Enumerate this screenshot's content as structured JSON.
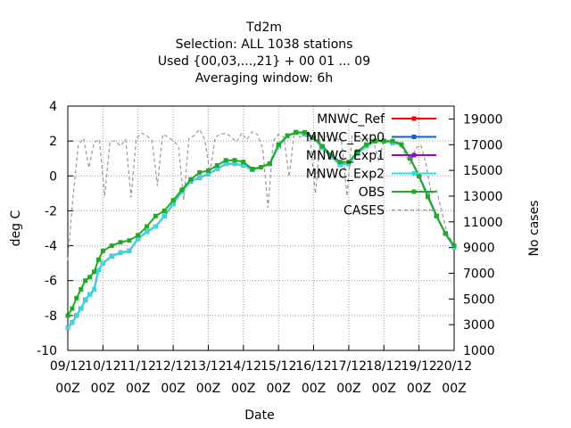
{
  "chart_data": {
    "type": "line",
    "title_lines": [
      "Td2m",
      "Selection: ALL    1038 stations",
      "Used {00,03,...,21} + 00 01 ... 09",
      "Averaging window:  6h"
    ],
    "xlabel": "Date",
    "ylabel": "deg C",
    "y2label": "No cases",
    "x_ticks": [
      {
        "d": 0,
        "l1": "09/12",
        "l2": "00Z"
      },
      {
        "d": 1,
        "l1": "10/12",
        "l2": "00Z"
      },
      {
        "d": 2,
        "l1": "11/12",
        "l2": "00Z"
      },
      {
        "d": 3,
        "l1": "12/12",
        "l2": "00Z"
      },
      {
        "d": 4,
        "l1": "13/12",
        "l2": "00Z"
      },
      {
        "d": 5,
        "l1": "14/12",
        "l2": "00Z"
      },
      {
        "d": 6,
        "l1": "15/12",
        "l2": "00Z"
      },
      {
        "d": 7,
        "l1": "16/12",
        "l2": "00Z"
      },
      {
        "d": 8,
        "l1": "17/12",
        "l2": "00Z"
      },
      {
        "d": 9,
        "l1": "18/12",
        "l2": "00Z"
      },
      {
        "d": 10,
        "l1": "19/12",
        "l2": "00Z"
      },
      {
        "d": 11,
        "l1": "20/12",
        "l2": "00Z"
      }
    ],
    "xlim": [
      0,
      11
    ],
    "ylim": [
      -10,
      4
    ],
    "y_ticks": [
      "-10",
      "-8",
      "-6",
      "-4",
      "-2",
      "0",
      "2",
      "4"
    ],
    "y2lim": [
      1000,
      20000
    ],
    "y2_ticks": [
      "1000",
      "3000",
      "5000",
      "7000",
      "9000",
      "11000",
      "13000",
      "15000",
      "17000",
      "19000"
    ],
    "grid": true,
    "legend_position": "top-right",
    "series": [
      {
        "name": "MNWC_Ref",
        "color": "#ff0000",
        "axis": "left",
        "x": [
          0,
          0.125,
          0.25,
          0.375,
          0.5,
          0.625,
          0.75,
          0.875,
          1,
          1.25,
          1.5,
          1.75,
          2,
          2.25,
          2.5,
          2.75,
          3,
          3.25,
          3.5,
          3.75,
          4,
          4.25,
          4.5,
          4.75,
          5,
          5.25,
          5.5,
          5.75,
          6,
          6.25,
          6.5,
          6.75,
          7,
          7.25,
          7.5,
          7.75,
          8,
          8.25,
          8.5,
          8.75,
          9,
          9.25,
          9.5,
          9.75,
          10,
          10.25,
          10.5,
          10.75,
          11
        ],
        "y": [
          -8.7,
          -8.4,
          -8.0,
          -7.6,
          -7.1,
          -6.8,
          -6.5,
          -5.4,
          -5.0,
          -4.6,
          -4.4,
          -4.3,
          -3.6,
          -3.2,
          -2.9,
          -2.3,
          -1.6,
          -0.9,
          -0.3,
          -0.1,
          0.1,
          0.4,
          0.7,
          0.7,
          0.6,
          0.35,
          0.5,
          0.7,
          1.7,
          2.3,
          2.5,
          2.4,
          2.2,
          1.6,
          1.1,
          0.65,
          0.7,
          1.3,
          1.7,
          2.0,
          2.0,
          1.9,
          1.8,
          1.0,
          0.0,
          -1.1,
          -2.3,
          -3.3,
          -4.1
        ]
      },
      {
        "name": "MNWC_Exp0",
        "color": "#0066dd",
        "axis": "left",
        "x": [
          0,
          0.125,
          0.25,
          0.375,
          0.5,
          0.625,
          0.75,
          0.875,
          1,
          1.25,
          1.5,
          1.75,
          2,
          2.25,
          2.5,
          2.75,
          3,
          3.25,
          3.5,
          3.75,
          4,
          4.25,
          4.5,
          4.75,
          5,
          5.25,
          5.5,
          5.75,
          6,
          6.25,
          6.5,
          6.75,
          7,
          7.25,
          7.5,
          7.75,
          8,
          8.25,
          8.5,
          8.75,
          9,
          9.25,
          9.5,
          9.75,
          10,
          10.25,
          10.5,
          10.75,
          11
        ],
        "y": [
          -8.7,
          -8.4,
          -8.0,
          -7.6,
          -7.1,
          -6.8,
          -6.5,
          -5.4,
          -5.0,
          -4.6,
          -4.4,
          -4.3,
          -3.6,
          -3.2,
          -2.9,
          -2.3,
          -1.6,
          -0.9,
          -0.3,
          -0.1,
          0.1,
          0.4,
          0.7,
          0.7,
          0.6,
          0.35,
          0.5,
          0.7,
          1.7,
          2.3,
          2.5,
          2.4,
          2.2,
          1.6,
          1.1,
          0.65,
          0.7,
          1.3,
          1.7,
          2.0,
          2.0,
          1.9,
          1.8,
          1.0,
          0.0,
          -1.1,
          -2.3,
          -3.3,
          -4.1
        ]
      },
      {
        "name": "MNWC_Exp1",
        "color": "#9900dd",
        "axis": "left",
        "x": [
          0,
          0.125,
          0.25,
          0.375,
          0.5,
          0.625,
          0.75,
          0.875,
          1,
          1.25,
          1.5,
          1.75,
          2,
          2.25,
          2.5,
          2.75,
          3,
          3.25,
          3.5,
          3.75,
          4,
          4.25,
          4.5,
          4.75,
          5,
          5.25,
          5.5,
          5.75,
          6,
          6.25,
          6.5,
          6.75,
          7,
          7.25,
          7.5,
          7.75,
          8,
          8.25,
          8.5,
          8.75,
          9,
          9.25,
          9.5,
          9.75,
          10,
          10.25,
          10.5,
          10.75,
          11
        ],
        "y": [
          -8.7,
          -8.4,
          -8.0,
          -7.6,
          -7.1,
          -6.8,
          -6.5,
          -5.4,
          -5.0,
          -4.6,
          -4.4,
          -4.3,
          -3.6,
          -3.2,
          -2.9,
          -2.3,
          -1.6,
          -0.9,
          -0.3,
          -0.1,
          0.1,
          0.4,
          0.7,
          0.7,
          0.6,
          0.35,
          0.5,
          0.7,
          1.7,
          2.3,
          2.5,
          2.4,
          2.2,
          1.6,
          1.1,
          0.65,
          0.7,
          1.3,
          1.7,
          2.0,
          2.0,
          1.9,
          1.8,
          1.0,
          0.0,
          -1.1,
          -2.3,
          -3.3,
          -4.1
        ]
      },
      {
        "name": "MNWC_Exp2",
        "color": "#33dddd",
        "axis": "left",
        "x": [
          0,
          0.125,
          0.25,
          0.375,
          0.5,
          0.625,
          0.75,
          0.875,
          1,
          1.25,
          1.5,
          1.75,
          2,
          2.25,
          2.5,
          2.75,
          3,
          3.25,
          3.5,
          3.75,
          4,
          4.25,
          4.5,
          4.75,
          5,
          5.25,
          5.5,
          5.75,
          6,
          6.25,
          6.5,
          6.75,
          7,
          7.25,
          7.5,
          7.75,
          8,
          8.25,
          8.5,
          8.75,
          9,
          9.25,
          9.5,
          9.75,
          10,
          10.25,
          10.5,
          10.75,
          11
        ],
        "y": [
          -8.7,
          -8.4,
          -8.0,
          -7.6,
          -7.1,
          -6.8,
          -6.5,
          -5.4,
          -5.0,
          -4.6,
          -4.4,
          -4.3,
          -3.6,
          -3.2,
          -2.9,
          -2.3,
          -1.6,
          -0.9,
          -0.3,
          -0.1,
          0.1,
          0.4,
          0.7,
          0.7,
          0.6,
          0.35,
          0.5,
          0.7,
          1.7,
          2.3,
          2.5,
          2.4,
          2.2,
          1.6,
          1.1,
          0.65,
          0.7,
          1.3,
          1.7,
          2.0,
          2.0,
          1.9,
          1.8,
          1.0,
          0.0,
          -1.1,
          -2.3,
          -3.3,
          -4.1
        ]
      },
      {
        "name": "OBS",
        "color": "#22aa22",
        "axis": "left",
        "x": [
          0,
          0.125,
          0.25,
          0.375,
          0.5,
          0.625,
          0.75,
          0.875,
          1,
          1.25,
          1.5,
          1.75,
          2,
          2.25,
          2.5,
          2.75,
          3,
          3.25,
          3.5,
          3.75,
          4,
          4.25,
          4.5,
          4.75,
          5,
          5.25,
          5.5,
          5.75,
          6,
          6.25,
          6.5,
          6.75,
          7,
          7.25,
          7.5,
          7.75,
          8,
          8.25,
          8.5,
          8.75,
          9,
          9.25,
          9.5,
          9.75,
          10,
          10.25,
          10.5,
          10.75,
          11
        ],
        "y": [
          -8.0,
          -7.6,
          -7.0,
          -6.5,
          -6.0,
          -5.8,
          -5.5,
          -4.8,
          -4.3,
          -4.0,
          -3.8,
          -3.7,
          -3.4,
          -2.9,
          -2.3,
          -2.0,
          -1.4,
          -0.8,
          -0.2,
          0.2,
          0.3,
          0.6,
          0.9,
          0.9,
          0.8,
          0.4,
          0.5,
          0.7,
          1.8,
          2.3,
          2.5,
          2.5,
          2.2,
          1.7,
          1.2,
          0.8,
          0.8,
          1.4,
          1.8,
          2.0,
          2.0,
          2.0,
          1.8,
          1.0,
          0.0,
          -1.2,
          -2.3,
          -3.3,
          -4.0
        ]
      },
      {
        "name": "CASES",
        "color": "#999999",
        "axis": "right",
        "dashed": true,
        "x": [
          0,
          0.15,
          0.3,
          0.45,
          0.6,
          0.75,
          0.9,
          1.05,
          1.2,
          1.35,
          1.5,
          1.65,
          1.8,
          1.95,
          2.1,
          2.25,
          2.4,
          2.55,
          2.7,
          2.85,
          3.0,
          3.15,
          3.3,
          3.45,
          3.6,
          3.75,
          3.9,
          4.05,
          4.2,
          4.35,
          4.5,
          4.65,
          4.8,
          4.95,
          5.1,
          5.25,
          5.4,
          5.55,
          5.7,
          5.85,
          6.0,
          6.15,
          6.3,
          6.45,
          6.6,
          6.75,
          6.9,
          7.05,
          7.2,
          7.35,
          7.5,
          7.65,
          7.8,
          7.95,
          8.1,
          8.25,
          8.4,
          8.55,
          8.7,
          8.85,
          9.0,
          9.15,
          9.3,
          9.45,
          9.6,
          9.75,
          9.9,
          10.05,
          10.2,
          10.35,
          10.5,
          10.65,
          10.8,
          11
        ],
        "y": [
          8000,
          13000,
          17000,
          17500,
          15200,
          17200,
          17400,
          13000,
          17200,
          17300,
          16900,
          17400,
          12900,
          17500,
          17900,
          17700,
          17300,
          13800,
          17800,
          17600,
          17300,
          16900,
          12700,
          17500,
          17700,
          18200,
          17400,
          14800,
          17600,
          17800,
          17900,
          17600,
          17200,
          17900,
          17400,
          18000,
          17800,
          16700,
          12100,
          17300,
          17800,
          17600,
          14500,
          18000,
          17600,
          17700,
          17500,
          13200,
          17700,
          17600,
          17800,
          17500,
          17200,
          13000,
          17800,
          17600,
          17400,
          17500,
          17200,
          15800,
          17300,
          17200,
          17400,
          17100,
          16300,
          15500,
          16700,
          17000,
          15500,
          13200,
          13500,
          11800,
          10100,
          9200
        ]
      }
    ]
  }
}
